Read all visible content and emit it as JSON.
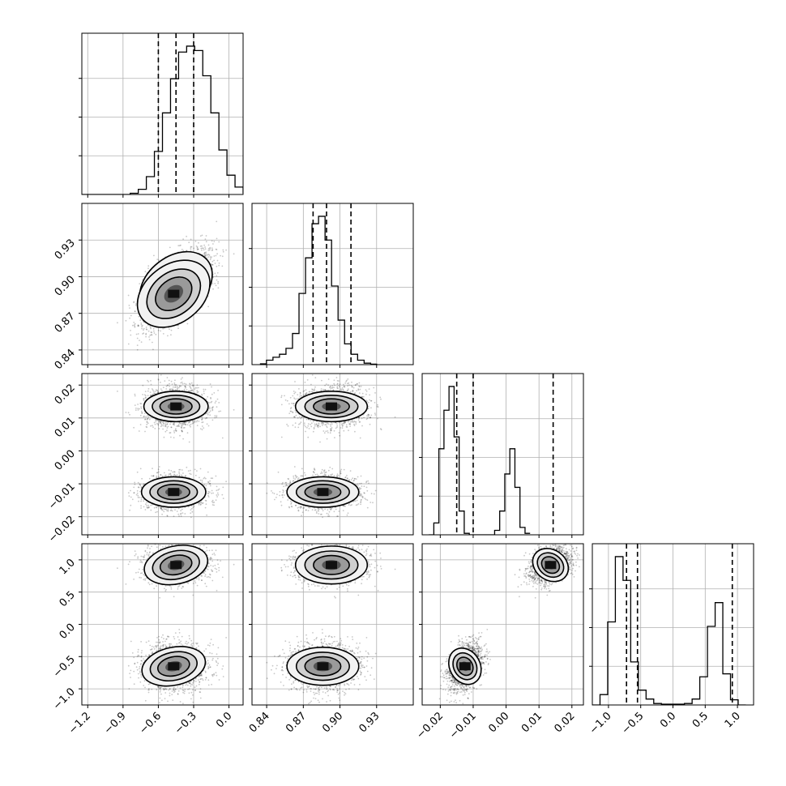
{
  "chart_data": {
    "type": "corner",
    "grid_on": true,
    "colors": {
      "line": "#000000",
      "grid": "#b0b0b0",
      "scatter": "#000000"
    },
    "parameters": [
      {
        "range": [
          -1.25,
          0.12
        ],
        "ticks": [
          -1.2,
          -0.9,
          -0.6,
          -0.3,
          0.0
        ],
        "tick_labels": [
          "−1.2",
          "−0.9",
          "−0.6",
          "−0.3",
          "0.0"
        ],
        "quantiles": [
          -0.6,
          -0.45,
          -0.3
        ],
        "hist": {
          "edges_start": -1.25,
          "bin_width": 0.0685,
          "counts": [
            0,
            0,
            0,
            0,
            0,
            0,
            0.8,
            3.5,
            12,
            29,
            55,
            78,
            96,
            100,
            97,
            80,
            55,
            30,
            13,
            5,
            1.2,
            0.2
          ]
        }
      },
      {
        "range": [
          0.828,
          0.96
        ],
        "ticks": [
          0.84,
          0.87,
          0.9,
          0.93
        ],
        "tick_labels": [
          "0.84",
          "0.87",
          "0.90",
          "0.93"
        ],
        "quantiles": [
          0.878,
          0.889,
          0.909
        ],
        "hist": {
          "edges_start": 0.8345,
          "bin_width": 0.00533,
          "counts": [
            0.5,
            3,
            5,
            7,
            11,
            21,
            48,
            72,
            95,
            100,
            84,
            53,
            30,
            14,
            7,
            3,
            1,
            0.3
          ]
        }
      },
      {
        "range": [
          -0.0255,
          0.0235
        ],
        "ticks": [
          -0.02,
          -0.01,
          0.0,
          0.01,
          0.02
        ],
        "tick_labels": [
          "−0.02",
          "−0.01",
          "0.00",
          "0.01",
          "0.02"
        ],
        "quantiles": [
          -0.015,
          -0.01,
          0.0143
        ],
        "hist": {
          "edges_start": -0.0235,
          "bin_width": 0.00154,
          "counts": [
            0,
            8,
            58,
            84,
            100,
            66,
            16,
            1,
            0,
            0,
            0,
            0,
            0,
            3,
            16,
            41,
            58,
            32,
            5,
            1
          ]
        }
      },
      {
        "range": [
          -1.25,
          1.25
        ],
        "ticks": [
          -1.0,
          -0.5,
          0.0,
          0.5,
          1.0
        ],
        "tick_labels": [
          "−1.0",
          "−0.5",
          "0.0",
          "0.5",
          "1.0"
        ],
        "quantiles": [
          -0.72,
          -0.55,
          0.92
        ],
        "hist": {
          "edges_start": -1.25,
          "bin_width": 0.119,
          "counts": [
            0,
            7,
            56,
            100,
            84,
            29,
            10,
            4,
            1,
            0.5,
            0.5,
            0.5,
            1,
            4,
            19,
            53,
            69,
            21,
            3.5,
            0
          ]
        }
      }
    ],
    "y_tick_labels": {
      "1": [
        "0.84",
        "0.87",
        "0.90",
        "0.93"
      ],
      "2": [
        "−0.02",
        "−0.01",
        "0.00",
        "0.01",
        "0.02"
      ],
      "3": [
        "−1.0",
        "−0.5",
        "0.0",
        "0.5",
        "1.0"
      ]
    },
    "modes": [
      {
        "weight": 0.5,
        "mean": [
          -0.45,
          0.893,
          0.0135,
          0.92
        ],
        "sd": [
          0.13,
          0.014,
          0.0022,
          0.14
        ]
      },
      {
        "weight": 0.5,
        "mean": [
          -0.47,
          0.886,
          -0.0125,
          -0.65
        ],
        "sd": [
          0.13,
          0.014,
          0.0022,
          0.14
        ]
      }
    ],
    "correlation_01": 0.6
  }
}
